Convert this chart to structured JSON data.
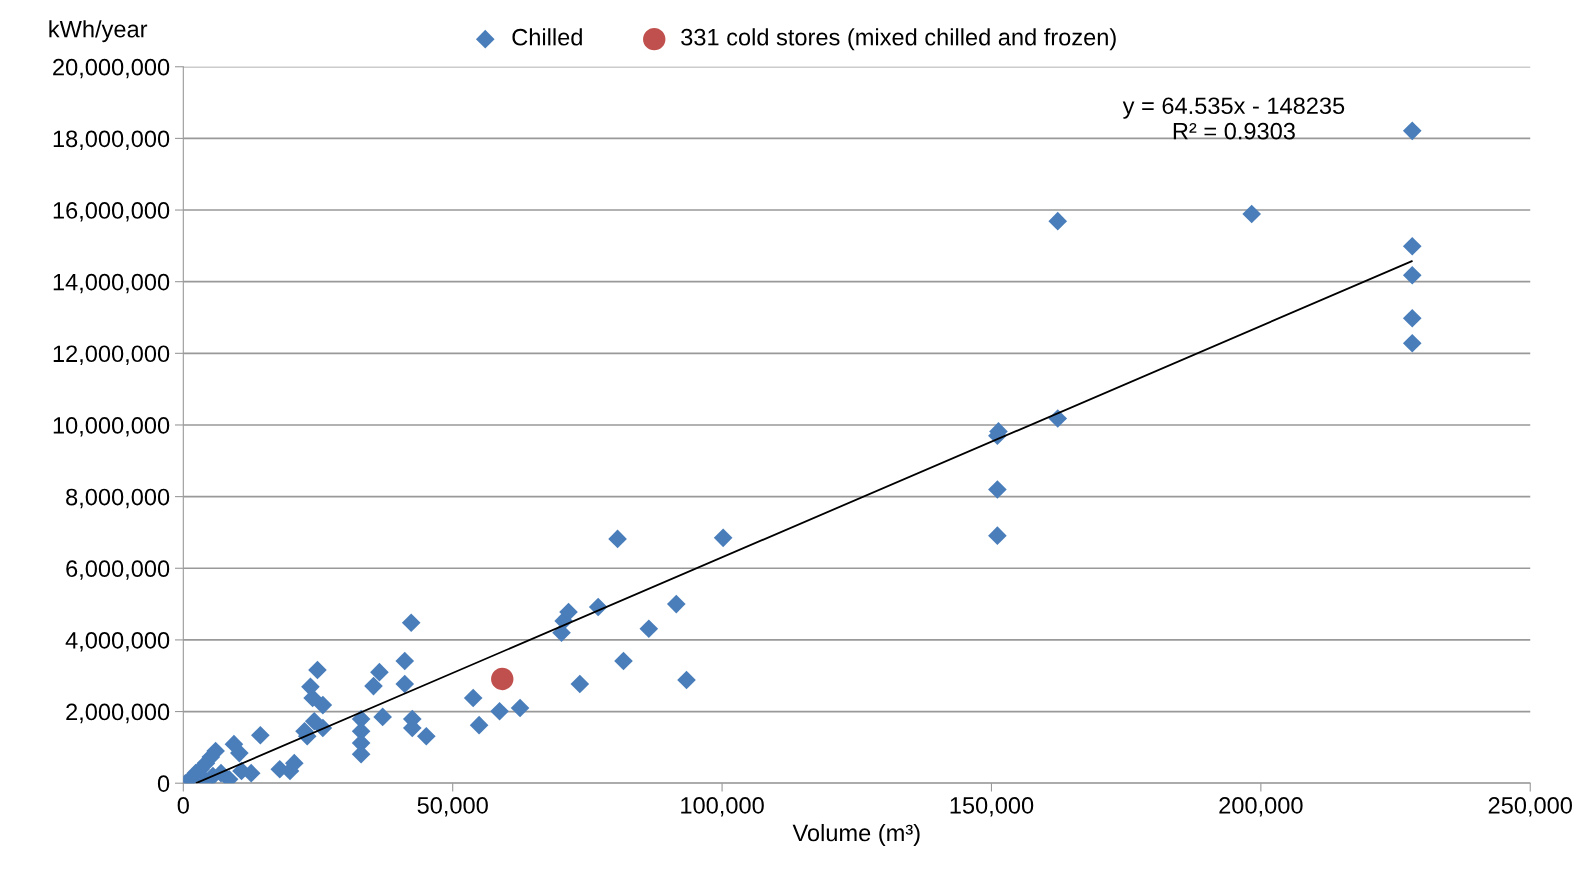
{
  "chart_data": {
    "type": "scatter",
    "xlabel": "Volume (m³)",
    "ylabel": "kWh/year",
    "xlim": [
      0,
      250000
    ],
    "ylim": [
      0,
      20000000
    ],
    "xticks": [
      {
        "value": 0,
        "label": "0"
      },
      {
        "value": 50000,
        "label": "50,000"
      },
      {
        "value": 100000,
        "label": "100,000"
      },
      {
        "value": 150000,
        "label": "150,000"
      },
      {
        "value": 200000,
        "label": "200,000"
      },
      {
        "value": 250000,
        "label": "250,000"
      }
    ],
    "yticks": [
      {
        "value": 0,
        "label": "0"
      },
      {
        "value": 2000000,
        "label": "2,000,000"
      },
      {
        "value": 4000000,
        "label": "4,000,000"
      },
      {
        "value": 6000000,
        "label": "6,000,000"
      },
      {
        "value": 8000000,
        "label": "8,000,000"
      },
      {
        "value": 10000000,
        "label": "10,000,000"
      },
      {
        "value": 12000000,
        "label": "12,000,000"
      },
      {
        "value": 14000000,
        "label": "14,000,000"
      },
      {
        "value": 16000000,
        "label": "16,000,000"
      },
      {
        "value": 18000000,
        "label": "18,000,000"
      },
      {
        "value": 20000000,
        "label": "20,000,000"
      }
    ],
    "grid": "y",
    "legend": "top",
    "annotations": [
      "y = 64.535x - 148235\nR² = 0.9303"
    ],
    "series": [
      {
        "name": "Chilled",
        "color": "#4a7ebb",
        "marker": "diamond",
        "x": [
          400,
          1300,
          2300,
          3200,
          4200,
          5100,
          6000,
          4200,
          5500,
          7000,
          8500,
          9400,
          10400,
          10800,
          12600,
          14300,
          17900,
          19800,
          20600,
          22500,
          23000,
          23600,
          24000,
          24900,
          24300,
          25900,
          25900,
          33000,
          33000,
          33000,
          33000,
          35300,
          36400,
          37000,
          41100,
          41100,
          42300,
          42500,
          42500,
          45100,
          53800,
          54900,
          58700,
          62500,
          70200,
          70600,
          71500,
          73600,
          77000,
          80600,
          81700,
          86400,
          91500,
          93400,
          100200,
          151100,
          151100,
          151100,
          151300,
          162300,
          162300,
          198300,
          228100,
          228100,
          228100,
          228100,
          228100
        ],
        "values": [
          0,
          110000,
          280000,
          390000,
          560000,
          730000,
          900000,
          60000,
          200000,
          280000,
          110000,
          1090000,
          840000,
          340000,
          280000,
          1340000,
          390000,
          340000,
          560000,
          1450000,
          1310000,
          2690000,
          2380000,
          3160000,
          1730000,
          1540000,
          2180000,
          1790000,
          1120000,
          810000,
          1450000,
          2710000,
          3100000,
          1850000,
          3410000,
          2770000,
          4480000,
          1790000,
          1540000,
          1310000,
          2380000,
          1620000,
          2010000,
          2100000,
          4200000,
          4530000,
          4780000,
          2770000,
          4920000,
          6820000,
          3410000,
          4310000,
          5000000,
          2880000,
          6850000,
          6910000,
          8200000,
          9700000,
          9820000,
          10180000,
          15690000,
          15890000,
          18210000,
          14990000,
          14180000,
          12980000,
          12280000
        ]
      },
      {
        "name": "331 cold stores (mixed chilled and frozen)",
        "color": "#c0504d",
        "marker": "circle",
        "x": [
          59200
        ],
        "values": [
          2910000
        ]
      },
      {
        "type": "line",
        "color": "#000000",
        "marker": "none",
        "x": [
          2500,
          228000
        ],
        "values": [
          10000,
          14570000
        ]
      }
    ]
  }
}
